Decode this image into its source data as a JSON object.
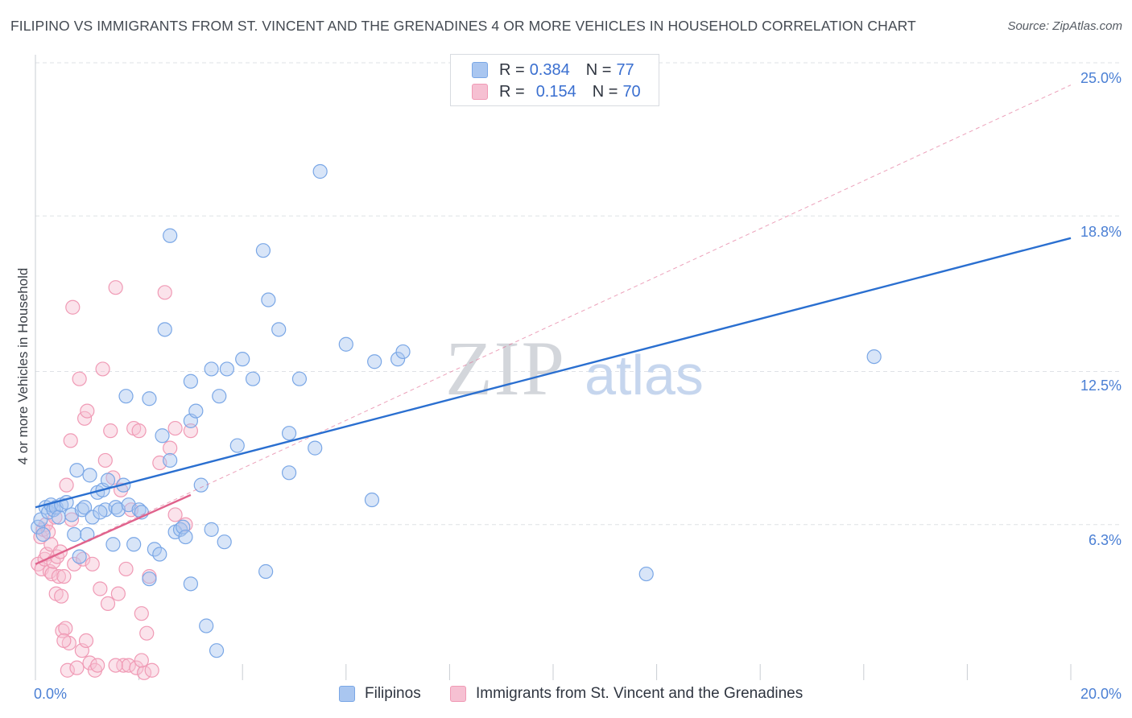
{
  "title": "FILIPINO VS IMMIGRANTS FROM ST. VINCENT AND THE GRENADINES 4 OR MORE VEHICLES IN HOUSEHOLD CORRELATION CHART",
  "source": "Source: ZipAtlas.com",
  "watermark": {
    "zip": "ZIP",
    "atlas": "atlas"
  },
  "colors": {
    "blue": "#7aa7e6",
    "blue_fill": "#a9c6f0",
    "blue_line": "#2a6fd0",
    "pink": "#f09ab5",
    "pink_fill": "#f6c0d2",
    "pink_line": "#e0628c",
    "axis_text": "#4a7fd4",
    "grid": "#dfe2e6"
  },
  "legend": {
    "rows": [
      {
        "r_label": "R =",
        "r_value": "0.384",
        "n_label": "N =",
        "n_value": "77"
      },
      {
        "r_label": "R =",
        "r_value": "0.154",
        "n_label": "N =",
        "n_value": "70"
      }
    ]
  },
  "bottom_legend": {
    "series1": "Filipinos",
    "series2": "Immigrants from St. Vincent and the Grenadines"
  },
  "axes": {
    "ylabel": "4 or more Vehicles in Household",
    "x_min_label": "0.0%",
    "x_max_label": "20.0%",
    "y_tick_labels": [
      "6.3%",
      "12.5%",
      "18.8%",
      "25.0%"
    ]
  },
  "chart_data": {
    "type": "scatter",
    "title": "FILIPINO VS IMMIGRANTS FROM ST. VINCENT AND THE GRENADINES 4 OR MORE VEHICLES IN HOUSEHOLD CORRELATION CHART",
    "xlabel": "",
    "ylabel": "4 or more Vehicles in Household",
    "xlim": [
      0,
      20
    ],
    "ylim": [
      0,
      25.0
    ],
    "yticks": [
      6.3,
      12.5,
      18.8,
      25.0
    ],
    "series": [
      {
        "name": "Filipinos",
        "R": 0.384,
        "N": 77,
        "trend": {
          "x": [
            0.0,
            20.0
          ],
          "y": [
            7.0,
            17.9
          ]
        },
        "points": [
          [
            0.05,
            6.2
          ],
          [
            0.1,
            6.5
          ],
          [
            0.15,
            5.9
          ],
          [
            0.2,
            7.0
          ],
          [
            0.25,
            6.8
          ],
          [
            0.3,
            7.1
          ],
          [
            0.35,
            6.9
          ],
          [
            0.4,
            7.0
          ],
          [
            0.45,
            6.6
          ],
          [
            0.5,
            7.1
          ],
          [
            0.6,
            7.2
          ],
          [
            0.7,
            6.7
          ],
          [
            0.75,
            5.9
          ],
          [
            0.8,
            8.5
          ],
          [
            0.85,
            5.0
          ],
          [
            0.9,
            6.9
          ],
          [
            0.95,
            7.0
          ],
          [
            1.0,
            5.9
          ],
          [
            1.05,
            8.3
          ],
          [
            1.1,
            6.6
          ],
          [
            1.2,
            7.6
          ],
          [
            1.3,
            7.7
          ],
          [
            1.35,
            6.9
          ],
          [
            1.4,
            8.1
          ],
          [
            1.5,
            5.5
          ],
          [
            1.55,
            7.0
          ],
          [
            1.6,
            6.9
          ],
          [
            1.7,
            7.9
          ],
          [
            1.75,
            11.5
          ],
          [
            1.8,
            7.1
          ],
          [
            1.9,
            5.5
          ],
          [
            2.0,
            6.9
          ],
          [
            2.05,
            6.8
          ],
          [
            2.2,
            4.1
          ],
          [
            2.2,
            11.4
          ],
          [
            2.3,
            5.3
          ],
          [
            2.4,
            5.1
          ],
          [
            2.45,
            9.9
          ],
          [
            2.5,
            14.2
          ],
          [
            2.6,
            8.9
          ],
          [
            2.6,
            18.0
          ],
          [
            2.7,
            6.0
          ],
          [
            2.8,
            6.1
          ],
          [
            2.85,
            6.2
          ],
          [
            2.9,
            5.8
          ],
          [
            3.0,
            3.9
          ],
          [
            3.0,
            10.5
          ],
          [
            3.0,
            12.1
          ],
          [
            3.1,
            10.9
          ],
          [
            3.2,
            7.9
          ],
          [
            3.3,
            2.2
          ],
          [
            3.4,
            12.6
          ],
          [
            3.4,
            6.1
          ],
          [
            3.5,
            1.2
          ],
          [
            3.55,
            11.5
          ],
          [
            3.65,
            5.6
          ],
          [
            3.7,
            12.6
          ],
          [
            3.9,
            9.5
          ],
          [
            4.0,
            13.0
          ],
          [
            4.2,
            12.2
          ],
          [
            4.4,
            17.4
          ],
          [
            4.45,
            4.4
          ],
          [
            4.5,
            15.4
          ],
          [
            4.7,
            14.2
          ],
          [
            4.9,
            8.4
          ],
          [
            4.9,
            10.0
          ],
          [
            5.1,
            12.2
          ],
          [
            5.4,
            9.4
          ],
          [
            5.5,
            20.6
          ],
          [
            6.0,
            13.6
          ],
          [
            6.5,
            7.3
          ],
          [
            6.55,
            12.9
          ],
          [
            7.0,
            13.0
          ],
          [
            7.1,
            13.3
          ],
          [
            11.8,
            4.3
          ],
          [
            16.2,
            13.1
          ],
          [
            1.25,
            6.8
          ]
        ]
      },
      {
        "name": "Immigrants from St. Vincent and the Grenadines",
        "R": 0.154,
        "N": 70,
        "trend": {
          "x": [
            0.0,
            3.0
          ],
          "y": [
            4.7,
            7.5
          ]
        },
        "trend_extended": {
          "x": [
            0.0,
            20.0
          ],
          "y": [
            4.7,
            24.1
          ]
        },
        "points": [
          [
            0.05,
            4.7
          ],
          [
            0.1,
            5.8
          ],
          [
            0.12,
            4.5
          ],
          [
            0.15,
            6.1
          ],
          [
            0.18,
            4.9
          ],
          [
            0.2,
            6.3
          ],
          [
            0.22,
            5.1
          ],
          [
            0.25,
            6.0
          ],
          [
            0.28,
            4.4
          ],
          [
            0.3,
            5.5
          ],
          [
            0.32,
            4.3
          ],
          [
            0.35,
            4.8
          ],
          [
            0.38,
            6.6
          ],
          [
            0.4,
            3.5
          ],
          [
            0.42,
            5.0
          ],
          [
            0.45,
            4.2
          ],
          [
            0.48,
            5.2
          ],
          [
            0.5,
            3.4
          ],
          [
            0.52,
            2.0
          ],
          [
            0.55,
            4.2
          ],
          [
            0.58,
            2.1
          ],
          [
            0.6,
            7.9
          ],
          [
            0.62,
            0.4
          ],
          [
            0.65,
            1.5
          ],
          [
            0.68,
            9.7
          ],
          [
            0.7,
            6.5
          ],
          [
            0.72,
            15.1
          ],
          [
            0.75,
            4.7
          ],
          [
            0.8,
            0.5
          ],
          [
            0.85,
            12.2
          ],
          [
            0.9,
            1.2
          ],
          [
            0.92,
            4.9
          ],
          [
            0.95,
            10.6
          ],
          [
            1.0,
            10.9
          ],
          [
            1.05,
            0.7
          ],
          [
            1.1,
            4.7
          ],
          [
            1.15,
            0.4
          ],
          [
            1.2,
            0.6
          ],
          [
            1.25,
            3.7
          ],
          [
            1.3,
            12.6
          ],
          [
            1.35,
            8.9
          ],
          [
            1.4,
            3.1
          ],
          [
            1.45,
            10.1
          ],
          [
            1.5,
            8.2
          ],
          [
            1.55,
            15.9
          ],
          [
            1.6,
            3.5
          ],
          [
            1.65,
            7.7
          ],
          [
            1.7,
            0.6
          ],
          [
            1.75,
            4.5
          ],
          [
            1.8,
            0.6
          ],
          [
            1.85,
            6.9
          ],
          [
            1.9,
            10.2
          ],
          [
            1.95,
            0.5
          ],
          [
            2.0,
            10.1
          ],
          [
            2.05,
            2.7
          ],
          [
            2.1,
            0.3
          ],
          [
            2.15,
            1.9
          ],
          [
            2.2,
            4.2
          ],
          [
            2.4,
            8.8
          ],
          [
            2.6,
            9.4
          ],
          [
            2.7,
            10.2
          ],
          [
            3.0,
            10.1
          ],
          [
            1.55,
            0.6
          ],
          [
            2.25,
            0.4
          ],
          [
            0.98,
            1.6
          ],
          [
            0.55,
            1.6
          ],
          [
            2.05,
            0.8
          ],
          [
            2.5,
            15.7
          ],
          [
            2.7,
            6.7
          ],
          [
            2.9,
            6.3
          ]
        ]
      }
    ]
  }
}
